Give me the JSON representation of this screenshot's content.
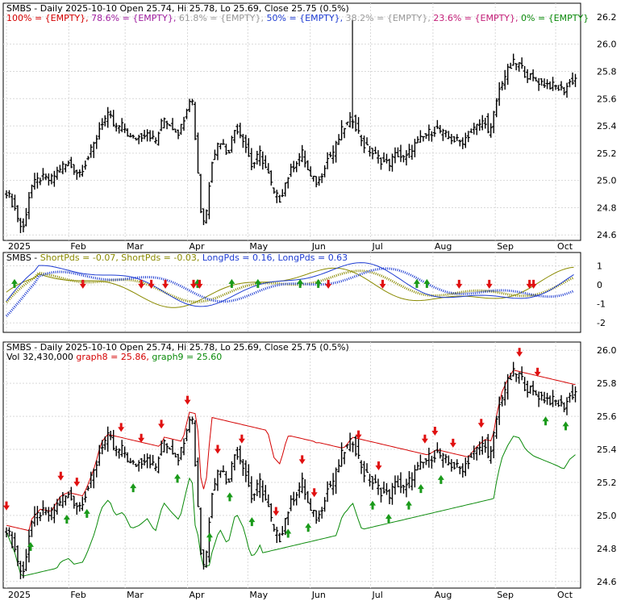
{
  "symbol": "SMBS",
  "header_main": "SMBS - Daily 2025-10-10 Open 25.74, Hi 25.78, Lo 25.69, Close 25.75 (0.5%)",
  "panel1_legend": [
    {
      "text": "100% = {EMPTY},",
      "color": "#d40000"
    },
    {
      "text": "78.6% = {EMPTY},",
      "color": "#a020a0"
    },
    {
      "text": "61.8% = {EMPTY},",
      "color": "#9a9a9a"
    },
    {
      "text": "50% = {EMPTY},",
      "color": "#1e3cd2"
    },
    {
      "text": "38.2% = {EMPTY},",
      "color": "#9a9a9a"
    },
    {
      "text": "23.6% = {EMPTY},",
      "color": "#c41e78"
    },
    {
      "text": "0% = {EMPTY}",
      "color": "#0a8a0a"
    }
  ],
  "panel2_legend": [
    {
      "text": "SMBS -",
      "color": "#000000"
    },
    {
      "text": "ShortPds = -0.07,",
      "color": "#8a8a00"
    },
    {
      "text": "ShortPds = -0.03,",
      "color": "#8a8a00"
    },
    {
      "text": "LongPds = 0.16,",
      "color": "#1e3cd2"
    },
    {
      "text": "LongPds = 0.63",
      "color": "#1e3cd2"
    }
  ],
  "panel3_legend_line2": [
    {
      "text": "Vol 32,430,000",
      "color": "#000000"
    },
    {
      "text": "graph8 = 25.86,",
      "color": "#d40000"
    },
    {
      "text": "graph9 = 25.60",
      "color": "#0a8a0a"
    }
  ],
  "colors": {
    "up_arrow": "#1a9a1a",
    "down_arrow": "#e01010",
    "price": "#000000",
    "stop_red": "#d40000",
    "stop_green": "#0a8a0a",
    "long_blue": "#1e3cd2",
    "short_olive": "#8a8a00"
  },
  "chart_data": [
    {
      "type": "ohlc",
      "panel": "price-fib",
      "y_ticks": [
        24.6,
        24.8,
        25.0,
        25.2,
        25.4,
        25.6,
        25.8,
        26.0,
        26.2
      ],
      "ylim": [
        24.56,
        26.3
      ],
      "x_tick_labels": [
        "2025",
        "Feb",
        "Mar",
        "Apr",
        "May",
        "Jun",
        "Jul",
        "Aug",
        "Sep",
        "Oct"
      ],
      "x_tick_days": [
        0,
        31,
        59,
        90,
        120,
        151,
        181,
        212,
        243,
        273
      ],
      "x_range_days": [
        0,
        283
      ],
      "price_keypoints": [
        [
          0,
          24.92
        ],
        [
          4,
          24.8
        ],
        [
          8,
          24.62
        ],
        [
          12,
          24.95
        ],
        [
          17,
          25.02
        ],
        [
          22,
          25.0
        ],
        [
          27,
          25.1
        ],
        [
          31,
          25.12
        ],
        [
          36,
          25.05
        ],
        [
          40,
          25.15
        ],
        [
          44,
          25.28
        ],
        [
          47,
          25.42
        ],
        [
          51,
          25.48
        ],
        [
          54,
          25.38
        ],
        [
          58,
          25.4
        ],
        [
          62,
          25.3
        ],
        [
          66,
          25.32
        ],
        [
          70,
          25.36
        ],
        [
          74,
          25.28
        ],
        [
          78,
          25.46
        ],
        [
          82,
          25.4
        ],
        [
          86,
          25.35
        ],
        [
          90,
          25.56
        ],
        [
          92,
          25.65
        ],
        [
          95,
          25.1
        ],
        [
          97,
          24.7
        ],
        [
          99,
          24.72
        ],
        [
          102,
          25.15
        ],
        [
          106,
          25.3
        ],
        [
          110,
          25.2
        ],
        [
          114,
          25.4
        ],
        [
          118,
          25.3
        ],
        [
          122,
          25.1
        ],
        [
          126,
          25.2
        ],
        [
          130,
          25.05
        ],
        [
          133,
          24.9
        ],
        [
          136,
          24.86
        ],
        [
          139,
          25.0
        ],
        [
          143,
          25.12
        ],
        [
          147,
          25.2
        ],
        [
          151,
          25.02
        ],
        [
          155,
          24.98
        ],
        [
          159,
          25.15
        ],
        [
          163,
          25.22
        ],
        [
          167,
          25.38
        ],
        [
          170,
          25.42
        ],
        [
          172,
          25.46
        ],
        [
          175,
          25.35
        ],
        [
          178,
          25.25
        ],
        [
          182,
          25.2
        ],
        [
          186,
          25.15
        ],
        [
          190,
          25.12
        ],
        [
          194,
          25.2
        ],
        [
          198,
          25.15
        ],
        [
          202,
          25.25
        ],
        [
          206,
          25.3
        ],
        [
          210,
          25.35
        ],
        [
          214,
          25.38
        ],
        [
          218,
          25.33
        ],
        [
          222,
          25.3
        ],
        [
          226,
          25.28
        ],
        [
          230,
          25.34
        ],
        [
          234,
          25.4
        ],
        [
          238,
          25.44
        ],
        [
          240,
          25.3
        ],
        [
          243,
          25.55
        ],
        [
          246,
          25.72
        ],
        [
          249,
          25.8
        ],
        [
          252,
          25.86
        ],
        [
          255,
          25.85
        ],
        [
          258,
          25.78
        ],
        [
          262,
          25.74
        ],
        [
          266,
          25.72
        ],
        [
          270,
          25.7
        ],
        [
          274,
          25.68
        ],
        [
          277,
          25.66
        ],
        [
          280,
          25.72
        ],
        [
          283,
          25.75
        ]
      ],
      "spike": {
        "day": 172,
        "high": 26.18,
        "low": 25.38
      }
    },
    {
      "type": "line",
      "panel": "oscillator",
      "y_ticks": [
        1,
        0,
        -1,
        -2
      ],
      "ylim": [
        -2.5,
        1.7
      ],
      "series": [
        {
          "name": "ShortPds",
          "style": "olive-dotted-thick"
        },
        {
          "name": "ShortPds",
          "style": "olive-thin"
        },
        {
          "name": "LongPds",
          "style": "blue-dotted-thick"
        },
        {
          "name": "LongPds",
          "style": "blue-thin"
        }
      ],
      "up_arrow_days": [
        4,
        95,
        112,
        125,
        146,
        155,
        204,
        209
      ],
      "down_arrow_days": [
        38,
        67,
        72,
        79,
        93,
        96,
        160,
        187,
        225,
        240,
        260,
        262
      ]
    },
    {
      "type": "ohlc",
      "panel": "price-stops",
      "y_ticks": [
        24.6,
        24.8,
        25.0,
        25.2,
        25.4,
        25.6,
        25.8,
        26.0
      ],
      "ylim": [
        24.56,
        26.05
      ],
      "x_tick_labels": [
        "2025",
        "Feb",
        "Mar",
        "Apr",
        "May",
        "Jun",
        "Jul",
        "Aug",
        "Sep",
        "Oct"
      ],
      "up_arrow_days": [
        12,
        30,
        40,
        63,
        85,
        101,
        111,
        122,
        140,
        150,
        182,
        190,
        200,
        206,
        216,
        268,
        278
      ],
      "down_arrow_days": [
        0,
        27,
        35,
        57,
        67,
        77,
        90,
        105,
        117,
        134,
        147,
        153,
        175,
        185,
        208,
        213,
        222,
        236,
        255,
        264
      ]
    }
  ]
}
